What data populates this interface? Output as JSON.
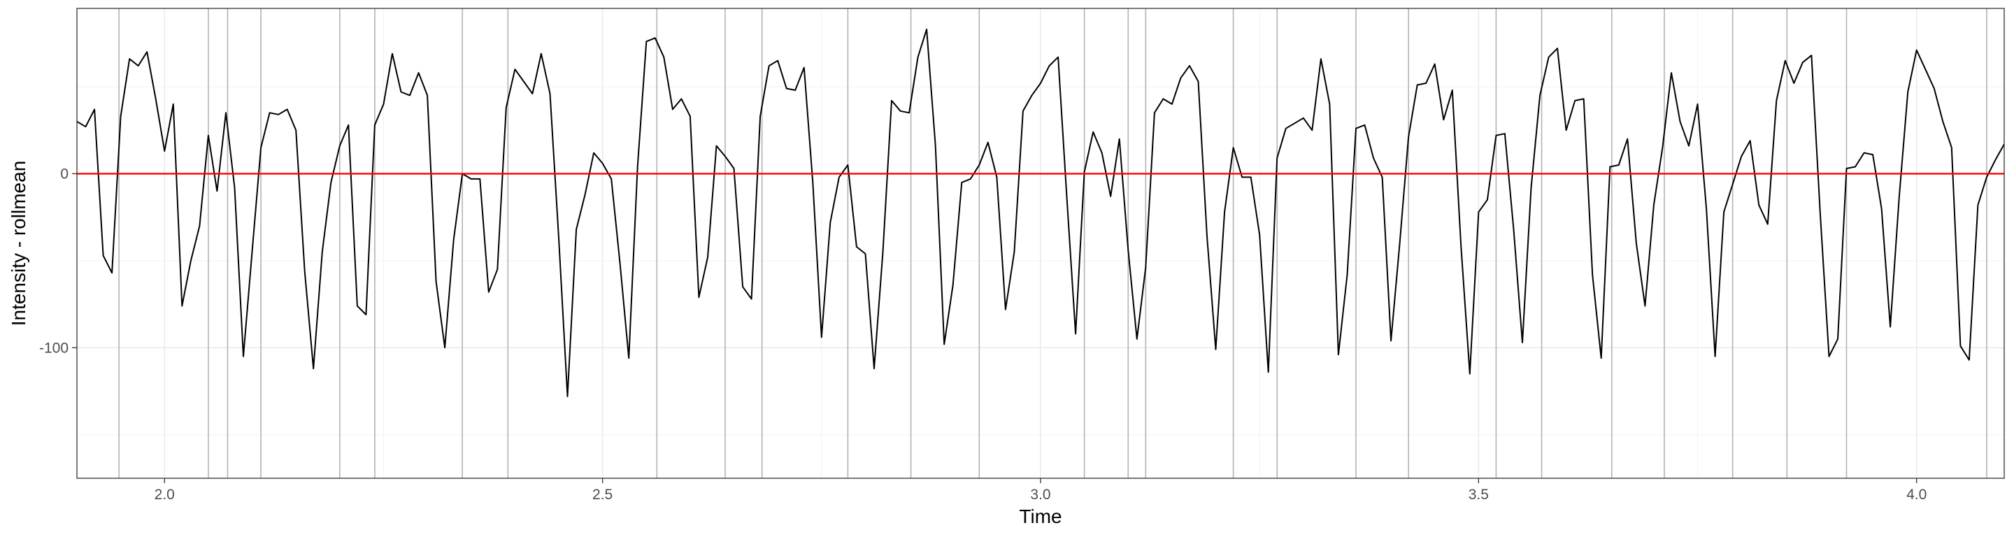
{
  "chart_data": {
    "type": "line",
    "title": "",
    "xlabel": "Time",
    "ylabel": "Intensity - rollmean",
    "xlim": [
      1.9,
      4.1
    ],
    "ylim": [
      -175,
      95
    ],
    "x_ticks": [
      2.0,
      2.5,
      3.0,
      3.5,
      4.0
    ],
    "x_tick_labels": [
      "2.0",
      "2.5",
      "3.0",
      "3.5",
      "4.0"
    ],
    "y_ticks": [
      -100,
      0
    ],
    "y_tick_labels": [
      "-100",
      "0"
    ],
    "grid": true,
    "hline": {
      "y": 0,
      "color": "#ff0000"
    },
    "vlines": {
      "color": "#b3b3b3",
      "x": [
        1.948,
        2.05,
        2.072,
        2.11,
        2.2,
        2.24,
        2.34,
        2.392,
        2.562,
        2.64,
        2.682,
        2.78,
        2.852,
        2.93,
        3.05,
        3.1,
        3.12,
        3.22,
        3.27,
        3.36,
        3.42,
        3.52,
        3.572,
        3.652,
        3.712,
        3.79,
        3.852,
        3.92,
        4.08
      ]
    },
    "series": [
      {
        "color": "#000000",
        "x": [
          1.9,
          1.91,
          1.92,
          1.93,
          1.94,
          1.95,
          1.96,
          1.97,
          1.98,
          1.99,
          2.0,
          2.01,
          2.02,
          2.03,
          2.04,
          2.05,
          2.06,
          2.07,
          2.08,
          2.09,
          2.1,
          2.11,
          2.12,
          2.13,
          2.14,
          2.15,
          2.16,
          2.17,
          2.18,
          2.19,
          2.2,
          2.21,
          2.22,
          2.23,
          2.24,
          2.25,
          2.26,
          2.27,
          2.28,
          2.29,
          2.3,
          2.31,
          2.32,
          2.33,
          2.34,
          2.35,
          2.36,
          2.37,
          2.38,
          2.39,
          2.4,
          2.41,
          2.42,
          2.43,
          2.44,
          2.45,
          2.46,
          2.47,
          2.48,
          2.49,
          2.5,
          2.51,
          2.52,
          2.53,
          2.54,
          2.55,
          2.56,
          2.57,
          2.58,
          2.59,
          2.6,
          2.61,
          2.62,
          2.63,
          2.64,
          2.65,
          2.66,
          2.67,
          2.68,
          2.69,
          2.7,
          2.71,
          2.72,
          2.73,
          2.74,
          2.75,
          2.76,
          2.77,
          2.78,
          2.79,
          2.8,
          2.81,
          2.82,
          2.83,
          2.84,
          2.85,
          2.86,
          2.87,
          2.88,
          2.89,
          2.9,
          2.91,
          2.92,
          2.93,
          2.94,
          2.95,
          2.96,
          2.97,
          2.98,
          2.99,
          3.0,
          3.01,
          3.02,
          3.03,
          3.04,
          3.05,
          3.06,
          3.07,
          3.08,
          3.09,
          3.1,
          3.11,
          3.12,
          3.13,
          3.14,
          3.15,
          3.16,
          3.17,
          3.18,
          3.19,
          3.2,
          3.21,
          3.22,
          3.23,
          3.24,
          3.25,
          3.26,
          3.27,
          3.28,
          3.29,
          3.3,
          3.31,
          3.32,
          3.33,
          3.34,
          3.35,
          3.36,
          3.37,
          3.38,
          3.39,
          3.4,
          3.41,
          3.42,
          3.43,
          3.44,
          3.45,
          3.46,
          3.47,
          3.48,
          3.49,
          3.5,
          3.51,
          3.52,
          3.53,
          3.54,
          3.55,
          3.56,
          3.57,
          3.58,
          3.59,
          3.6,
          3.61,
          3.62,
          3.63,
          3.64,
          3.65,
          3.66,
          3.67,
          3.68,
          3.69,
          3.7,
          3.71,
          3.72,
          3.73,
          3.74,
          3.75,
          3.76,
          3.77,
          3.78,
          3.79,
          3.8,
          3.81,
          3.82,
          3.83,
          3.84,
          3.85,
          3.86,
          3.87,
          3.88,
          3.89,
          3.9,
          3.91,
          3.92,
          3.93,
          3.94,
          3.95,
          3.96,
          3.97,
          3.98,
          3.99,
          4.0,
          4.01,
          4.02,
          4.03,
          4.04,
          4.05,
          4.06,
          4.07,
          4.08,
          4.09,
          4.1
        ],
        "y": [
          30,
          27,
          37,
          -47,
          -57,
          33,
          66,
          62,
          70,
          43,
          13,
          40,
          -76,
          -50,
          -30,
          22,
          -10,
          35,
          -8,
          -105,
          -45,
          15,
          35,
          34,
          37,
          25,
          -56,
          -112,
          -45,
          -5,
          16,
          28,
          -76,
          -81,
          28,
          40,
          69,
          47,
          45,
          58,
          45,
          -62,
          -100,
          -38,
          0,
          -3,
          -3,
          -68,
          -55,
          38,
          60,
          53,
          46,
          69,
          46,
          -37,
          -128,
          -32,
          -12,
          12,
          6,
          -3,
          -52,
          -106,
          4,
          76,
          78,
          67,
          37,
          43,
          33,
          -71,
          -48,
          16,
          10,
          3,
          -65,
          -72,
          33,
          62,
          65,
          49,
          48,
          61,
          -5,
          -94,
          -28,
          -2,
          5,
          -42,
          -46,
          -112,
          -45,
          42,
          36,
          35,
          67,
          83,
          16,
          -98,
          -64,
          -5,
          -3,
          5,
          18,
          -2,
          -78,
          -45,
          36,
          45,
          52,
          62,
          67,
          -14,
          -92,
          1,
          24,
          12,
          -13,
          20,
          -44,
          -95,
          -54,
          35,
          43,
          40,
          55,
          62,
          53,
          -36,
          -101,
          -22,
          15,
          -2,
          -2,
          -35,
          -114,
          9,
          26,
          29,
          32,
          25,
          66,
          40,
          -104,
          -58,
          26,
          28,
          9,
          -2,
          -96,
          -40,
          21,
          51,
          52,
          63,
          31,
          48,
          -42,
          -115,
          -22,
          -15,
          22,
          23,
          -32,
          -97,
          -8,
          45,
          67,
          72,
          25,
          42,
          43,
          -58,
          -106,
          4,
          5,
          20,
          -40,
          -76,
          -18,
          15,
          58,
          30,
          16,
          40,
          -20,
          -105,
          -22,
          -6,
          10,
          19,
          -18,
          -29,
          42,
          65,
          52,
          64,
          68,
          -23,
          -105,
          -95,
          3,
          4,
          12,
          11,
          -20,
          -88,
          -14,
          47,
          71,
          60,
          49,
          30,
          15,
          -99,
          -107,
          -18,
          -2,
          8,
          17
        ]
      }
    ]
  }
}
